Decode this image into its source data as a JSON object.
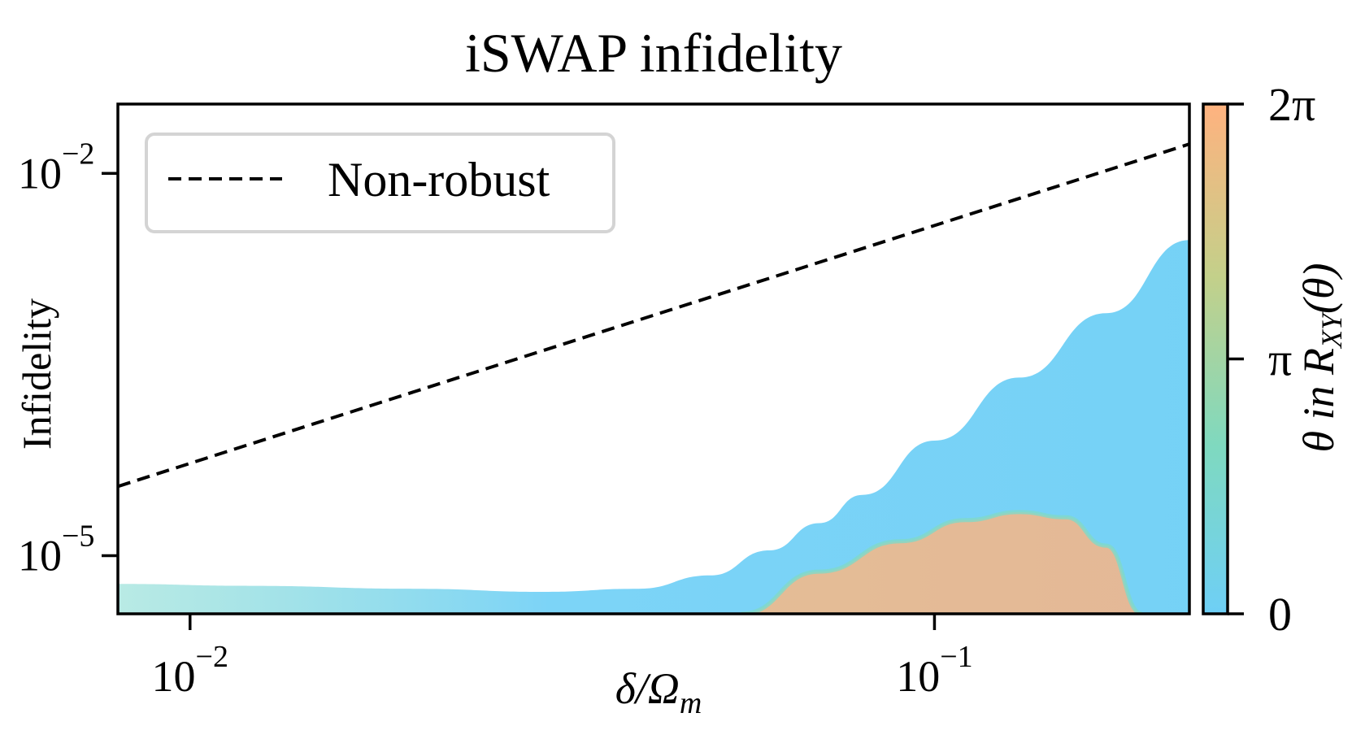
{
  "chart_data": {
    "type": "line",
    "title": "iSWAP infidelity",
    "xlabel_main": "δ/Ω",
    "xlabel_sub": "m",
    "ylabel": "Infidelity",
    "xscale": "log",
    "yscale": "log",
    "xlim": [
      0.008,
      0.22
    ],
    "ylim": [
      3.5e-06,
      0.035
    ],
    "x_ticks": [
      {
        "value": 0.01,
        "base": "10",
        "exp": "−2"
      },
      {
        "value": 0.1,
        "base": "10",
        "exp": "−1"
      }
    ],
    "y_ticks": [
      {
        "value": 1e-05,
        "base": "10",
        "exp": "−5"
      },
      {
        "value": 0.01,
        "base": "10",
        "exp": "−2"
      }
    ],
    "legend": {
      "entries": [
        {
          "label": "Non-robust",
          "style": "dashed",
          "color": "#000000"
        }
      ],
      "position": "top-left"
    },
    "series": [
      {
        "name": "Non-robust",
        "style": "dashed",
        "color": "#000000",
        "x": [
          0.008,
          0.22
        ],
        "y": [
          3.5e-05,
          0.017
        ]
      }
    ],
    "ensemble": {
      "description": "family of robust-pulse infidelity curves colored by theta",
      "color_var": "θ in R_XY(θ)",
      "low_theta_upper_x": [
        0.008,
        0.012,
        0.02,
        0.03,
        0.04,
        0.05,
        0.06,
        0.07,
        0.08,
        0.1,
        0.13,
        0.17,
        0.22
      ],
      "low_theta_upper_y": [
        6e-06,
        5.8e-06,
        5.5e-06,
        5.2e-06,
        5.5e-06,
        7e-06,
        1.1e-05,
        1.8e-05,
        3e-05,
        8e-05,
        0.00025,
        0.0008,
        0.003
      ],
      "high_theta_upper_x": [
        0.055,
        0.07,
        0.09,
        0.11,
        0.13,
        0.15,
        0.17,
        0.19
      ],
      "high_theta_upper_y": [
        3.5e-06,
        7.5e-06,
        1.3e-05,
        1.9e-05,
        2.2e-05,
        2e-05,
        1.2e-05,
        3.5e-06
      ]
    }
  },
  "colorbar": {
    "label_prefix": "θ in R",
    "label_sub": "XY",
    "label_suffix": "(θ)",
    "ticks": [
      {
        "label": "0",
        "value": 0
      },
      {
        "label": "π",
        "value": 0.5
      },
      {
        "label": "2π",
        "value": 1
      }
    ],
    "colors": [
      "#6ecff6",
      "#7fd9bf",
      "#c3d08a",
      "#ffb27f"
    ]
  }
}
